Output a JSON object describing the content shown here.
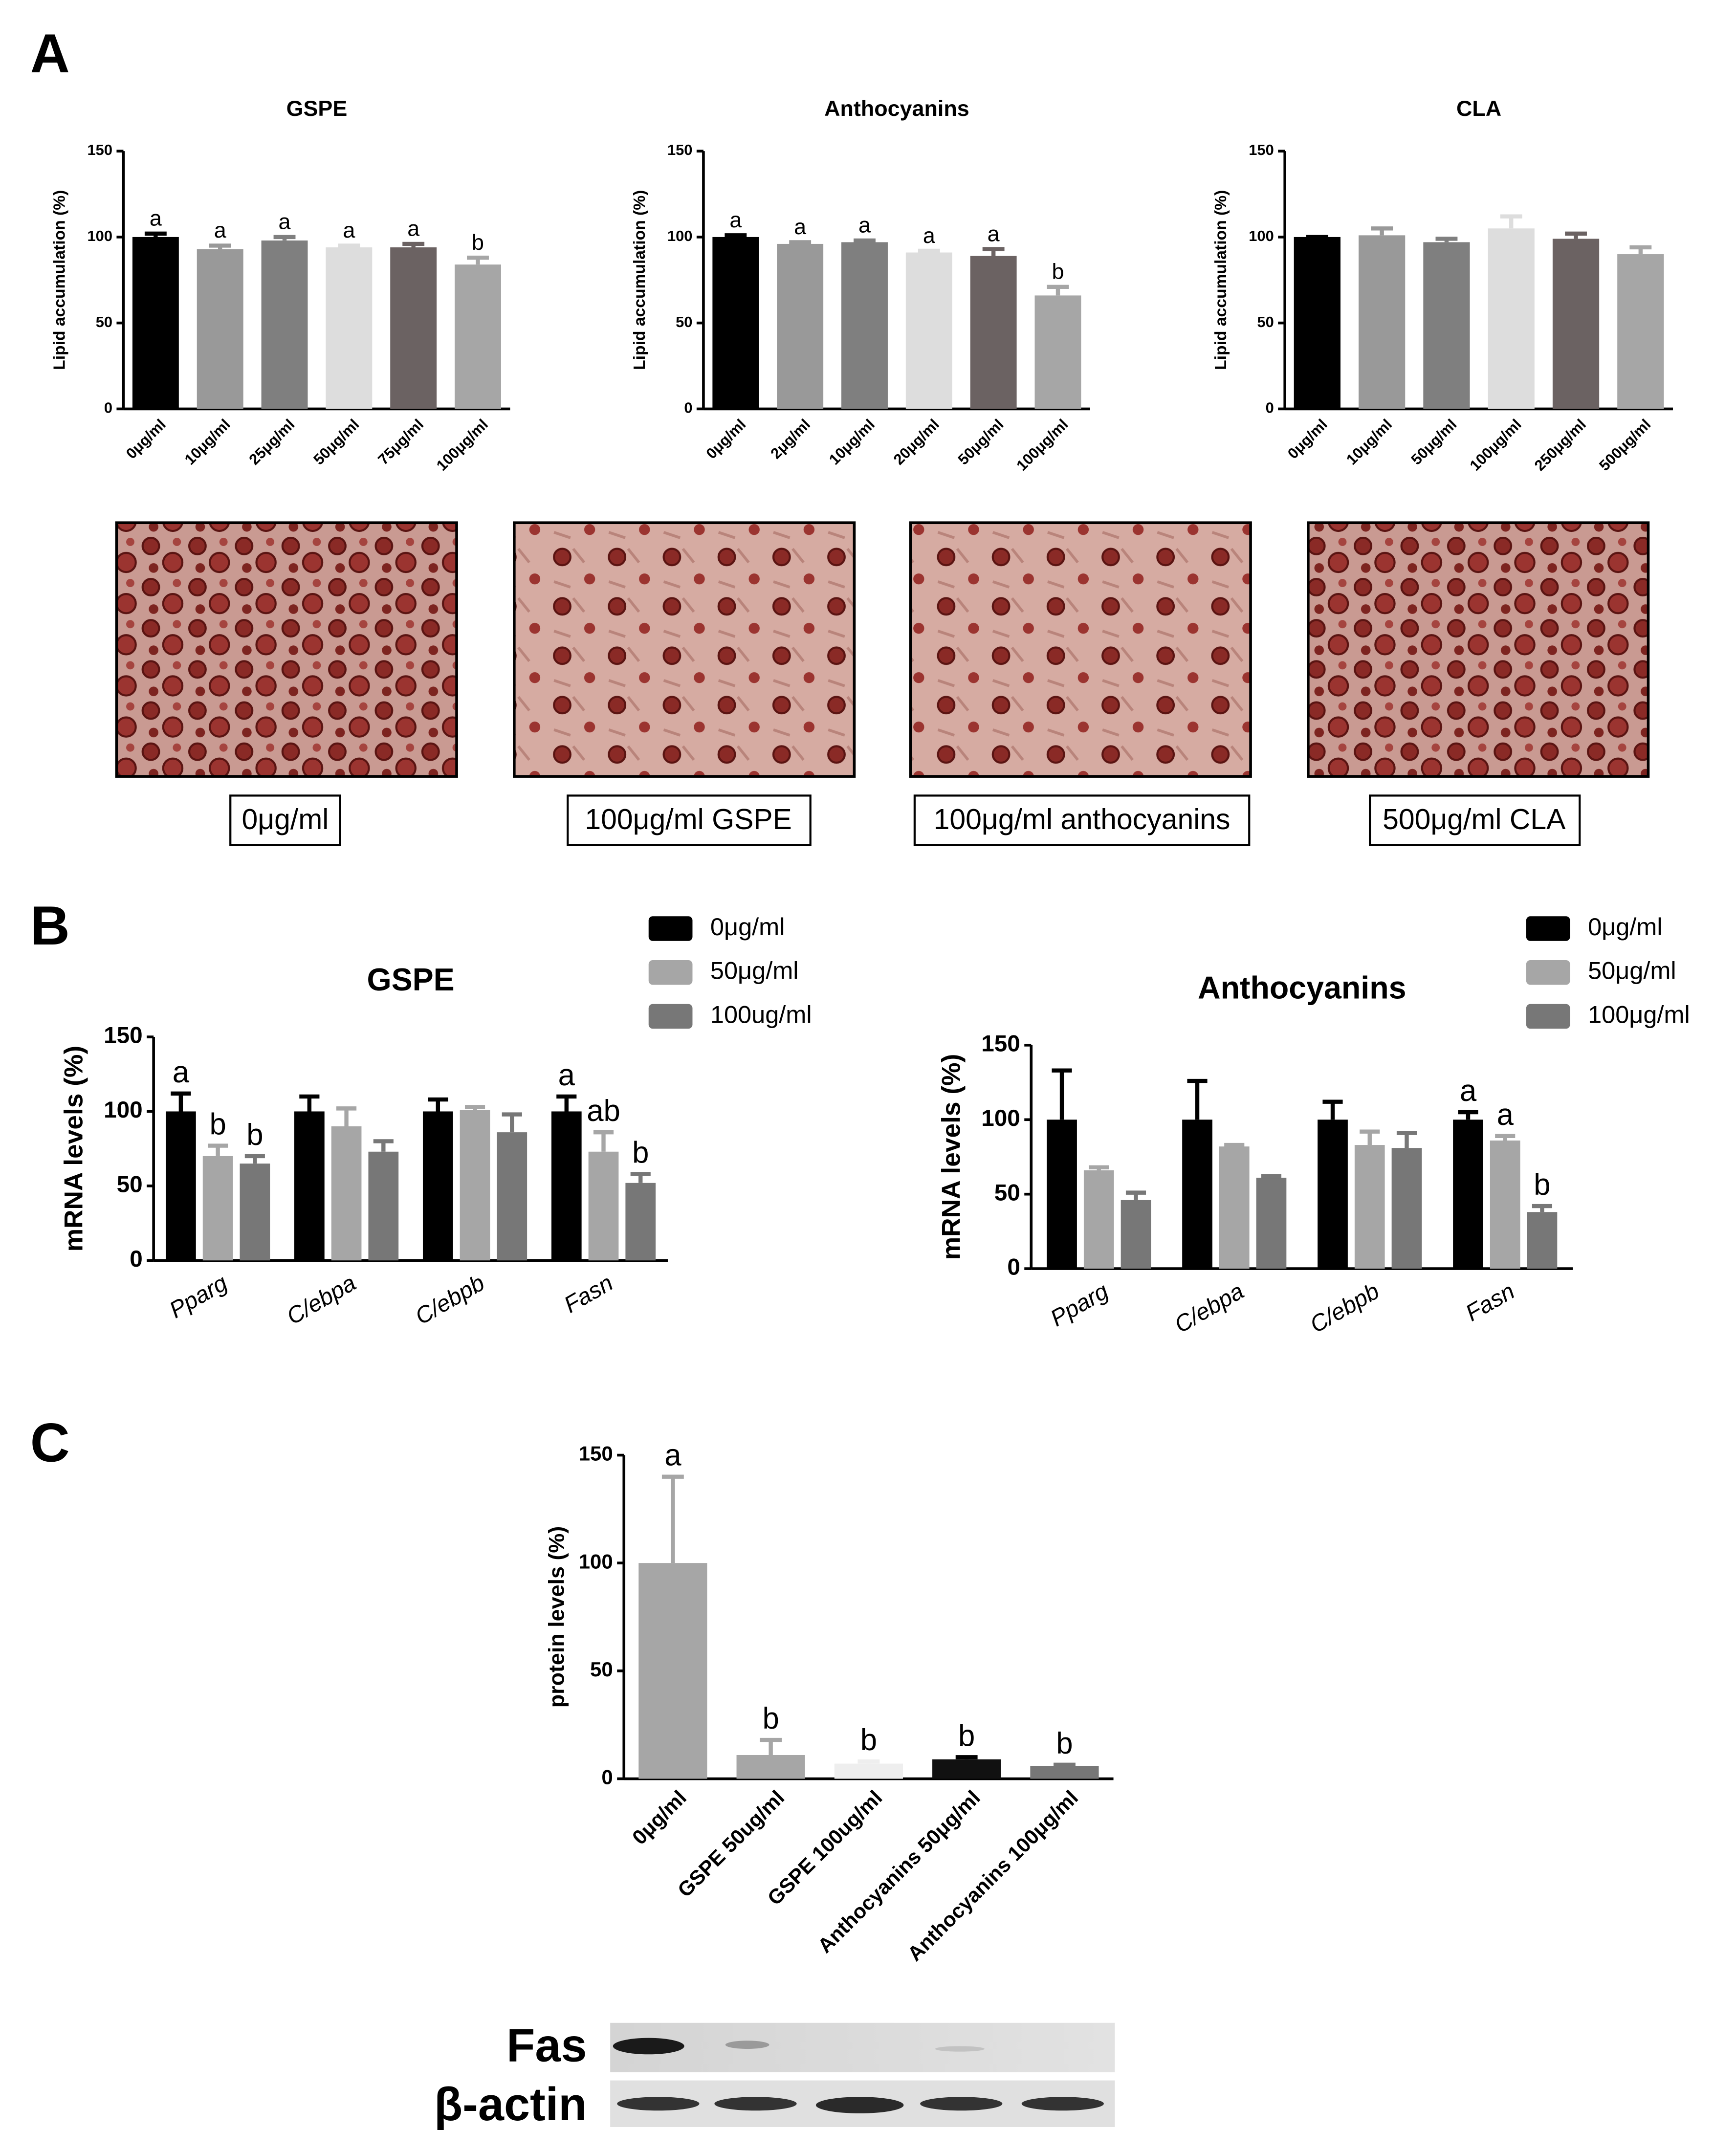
{
  "panel_labels": [
    "A",
    "B",
    "C"
  ],
  "chart_data": [
    {
      "type": "bar",
      "title": "GSPE",
      "y_label": "Lipid accumulation (%)",
      "categories": [
        "0μg/ml",
        "10μg/ml",
        "25μg/ml",
        "50μg/ml",
        "75μg/ml",
        "100μg/ml"
      ],
      "values": [
        100,
        93,
        98,
        94,
        94,
        84
      ],
      "errors": [
        2,
        2,
        2,
        1,
        2,
        4
      ],
      "letters": [
        "a",
        "a",
        "a",
        "a",
        "a",
        "b"
      ],
      "colors": [
        "#000000",
        "#999999",
        "#7f7f7f",
        "#dddddd",
        "#6b6262",
        "#a6a6a6"
      ],
      "ylim": [
        0,
        150
      ],
      "yticks": [
        0,
        50,
        100,
        150
      ]
    },
    {
      "type": "bar",
      "title": "Anthocyanins",
      "y_label": "Lipid accumulation (%)",
      "categories": [
        "0μg/ml",
        "2μg/ml",
        "10μg/ml",
        "20μg/ml",
        "50μg/ml",
        "100μg/ml"
      ],
      "values": [
        100,
        96,
        97,
        91,
        89,
        66
      ],
      "errors": [
        1,
        1,
        1,
        1,
        4,
        5
      ],
      "letters": [
        "a",
        "a",
        "a",
        "a",
        "a",
        "b"
      ],
      "colors": [
        "#000000",
        "#999999",
        "#7f7f7f",
        "#dddddd",
        "#6b6262",
        "#a6a6a6"
      ],
      "ylim": [
        0,
        150
      ],
      "yticks": [
        0,
        50,
        100,
        150
      ]
    },
    {
      "type": "bar",
      "title": "CLA",
      "y_label": "Lipid accumulation (%)",
      "categories": [
        "0μg/ml",
        "10μg/ml",
        "50μg/ml",
        "100μg/ml",
        "250μg/ml",
        "500μg/ml"
      ],
      "values": [
        100,
        101,
        97,
        105,
        99,
        90
      ],
      "errors": [
        0,
        4,
        2,
        7,
        3,
        4
      ],
      "colors": [
        "#000000",
        "#999999",
        "#7f7f7f",
        "#dddddd",
        "#6b6262",
        "#a6a6a6"
      ],
      "ylim": [
        0,
        150
      ],
      "yticks": [
        0,
        50,
        100,
        150
      ]
    },
    {
      "type": "grouped_bar",
      "title": "GSPE",
      "y_label": "mRNA levels (%)",
      "categories": [
        "Pparg",
        "C/ebpa",
        "C/ebpb",
        "Fasn"
      ],
      "series": [
        {
          "name": "0μg/ml",
          "color": "#000000",
          "values": [
            100,
            100,
            100,
            100
          ],
          "errors": [
            12,
            10,
            8,
            10
          ],
          "letters": [
            "a",
            null,
            null,
            "a"
          ]
        },
        {
          "name": "50μg/ml",
          "color": "#a6a6a6",
          "values": [
            70,
            90,
            101,
            73
          ],
          "errors": [
            7,
            12,
            2,
            13
          ],
          "letters": [
            "b",
            null,
            null,
            "ab"
          ]
        },
        {
          "name": "100ug/ml",
          "color": "#777777",
          "values": [
            65,
            73,
            86,
            52
          ],
          "errors": [
            5,
            7,
            12,
            6
          ],
          "letters": [
            "b",
            null,
            null,
            "b"
          ]
        }
      ],
      "legend": "upper right",
      "ylim": [
        0,
        150
      ],
      "yticks": [
        0,
        50,
        100,
        150
      ]
    },
    {
      "type": "grouped_bar",
      "title": "Anthocyanins",
      "y_label": "mRNA levels (%)",
      "categories": [
        "Pparg",
        "C/ebpa",
        "C/ebpb",
        "Fasn"
      ],
      "series": [
        {
          "name": "0μg/ml",
          "color": "#000000",
          "values": [
            100,
            100,
            100,
            100
          ],
          "errors": [
            33,
            26,
            12,
            5
          ],
          "letters": [
            null,
            null,
            null,
            "a"
          ]
        },
        {
          "name": "50μg/ml",
          "color": "#a6a6a6",
          "values": [
            66,
            82,
            83,
            86
          ],
          "errors": [
            2,
            1,
            9,
            3
          ],
          "letters": [
            null,
            null,
            null,
            "a"
          ]
        },
        {
          "name": "100μg/ml",
          "color": "#777777",
          "values": [
            46,
            61,
            81,
            38
          ],
          "errors": [
            5,
            1,
            10,
            4
          ],
          "letters": [
            null,
            null,
            null,
            "b"
          ]
        }
      ],
      "legend": "upper right",
      "ylim": [
        0,
        150
      ],
      "yticks": [
        0,
        50,
        100,
        150
      ]
    },
    {
      "type": "bar",
      "y_label": "protein levels (%)",
      "categories": [
        "0μg/ml",
        "GSPE 50ug/ml",
        "GSPE 100ug/ml",
        "Anthocyanins 50μg/ml",
        "Anthocyanins 100μg/ml"
      ],
      "values": [
        100,
        11,
        7,
        9,
        6
      ],
      "errors": [
        40,
        7,
        1,
        1,
        0.5
      ],
      "letters": [
        "a",
        "b",
        "b",
        "b",
        "b"
      ],
      "colors": [
        "#a6a6a6",
        "#a6a6a6",
        "#eeeeee",
        "#111111",
        "#777777"
      ],
      "ylim": [
        0,
        150
      ],
      "yticks": [
        0,
        50,
        100,
        150
      ]
    }
  ],
  "micrographs": [
    {
      "caption": "0μg/ml"
    },
    {
      "caption": "100μg/ml GSPE"
    },
    {
      "caption": "100μg/ml anthocyanins"
    },
    {
      "caption": "500μg/ml CLA"
    }
  ],
  "blot": {
    "rows": [
      "Fas",
      "β-actin"
    ]
  }
}
